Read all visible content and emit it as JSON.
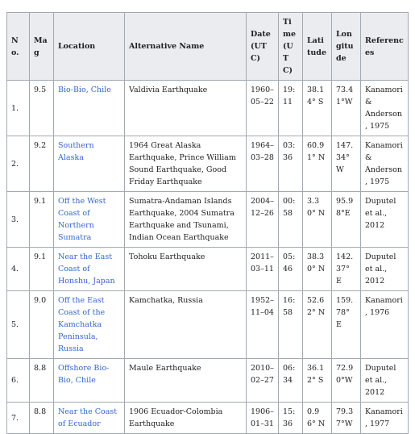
{
  "table": {
    "headers": [
      "No.",
      "Mag",
      "Location",
      "Alternative Name",
      "Date (UTC)",
      "Time (UTC)",
      "Latitude",
      "Longitude",
      "References"
    ],
    "rows": [
      [
        "1.",
        "9.5",
        "Bio-Bio, Chile",
        "Valdivia Earthquake",
        "1960–05–22",
        "19:11",
        "38.14° S",
        "73.41°W",
        "Kanamori & Anderson, 1975"
      ],
      [
        "2.",
        "9.2",
        "Southern Alaska",
        "1964 Great Alaska Earthquake, Prince William Sound Earthquake, Good Friday Earthquake",
        "1964–03–28",
        "03:36",
        "60.91° N",
        "147.34° W",
        "Kanamori & Anderson, 1975"
      ],
      [
        "3.",
        "9.1",
        "Off the West Coast of Northern Sumatra",
        "Sumatra-Andaman Islands Earthquake, 2004 Sumatra Earthquake and Tsunami, Indian Ocean Earthquake",
        "2004–12–26",
        "00:58",
        "3.30° N",
        "95.98°E",
        "Duputel et al., 2012"
      ],
      [
        "4.",
        "9.1",
        "Near the East Coast of Honshu, Japan",
        "Tohoku Earthquake",
        "2011–03–11",
        "05:46",
        "38.30° N",
        "142.37° E",
        "Duputel et al., 2012"
      ],
      [
        "5.",
        "9.0",
        "Off the East Coast of the Kamchatka Peninsula, Russia",
        "Kamchatka, Russia",
        "1952–11–04",
        "16:58",
        "52.62° N",
        "159.78° E",
        "Kanamori, 1976"
      ],
      [
        "6.",
        "8.8",
        "Offshore Bio-Bio, Chile",
        "Maule Earthquake",
        "2010–02–27",
        "06:34",
        "36.12° S",
        "72.90°W",
        "Duputel et al., 2012"
      ],
      [
        "7.",
        "8.8",
        "Near the Coast of Ecuador",
        "1906 Ecuador-Colombia Earthquake",
        "1906–01–31",
        "15:36",
        "0.96° N",
        "79.37°W",
        "Kanamori, 1977"
      ]
    ]
  }
}
